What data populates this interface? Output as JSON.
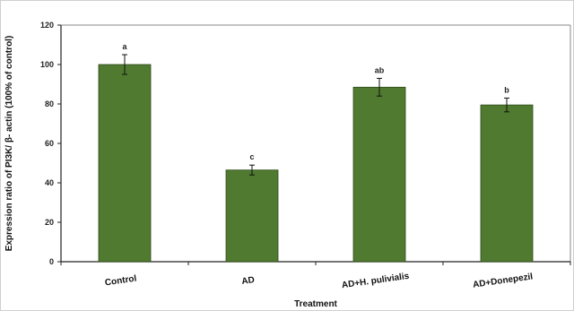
{
  "chart_data": {
    "type": "bar",
    "xlabel": "Treatment",
    "ylabel": "Expression ratio of PI3K/ β- actin (100% of control)",
    "ylim": [
      0,
      120
    ],
    "yticks": [
      0,
      20,
      40,
      60,
      80,
      100,
      120
    ],
    "categories": [
      "Control",
      "AD",
      "AD+H. pulivialis",
      "AD+Donepezil"
    ],
    "values": [
      100,
      46.5,
      88.5,
      79.5
    ],
    "errors": [
      5,
      2.5,
      4.5,
      3.5
    ],
    "significance_labels": [
      "a",
      "c",
      "ab",
      "b"
    ],
    "bar_color": "#4f7a2f",
    "grid": false,
    "legend": "none"
  }
}
